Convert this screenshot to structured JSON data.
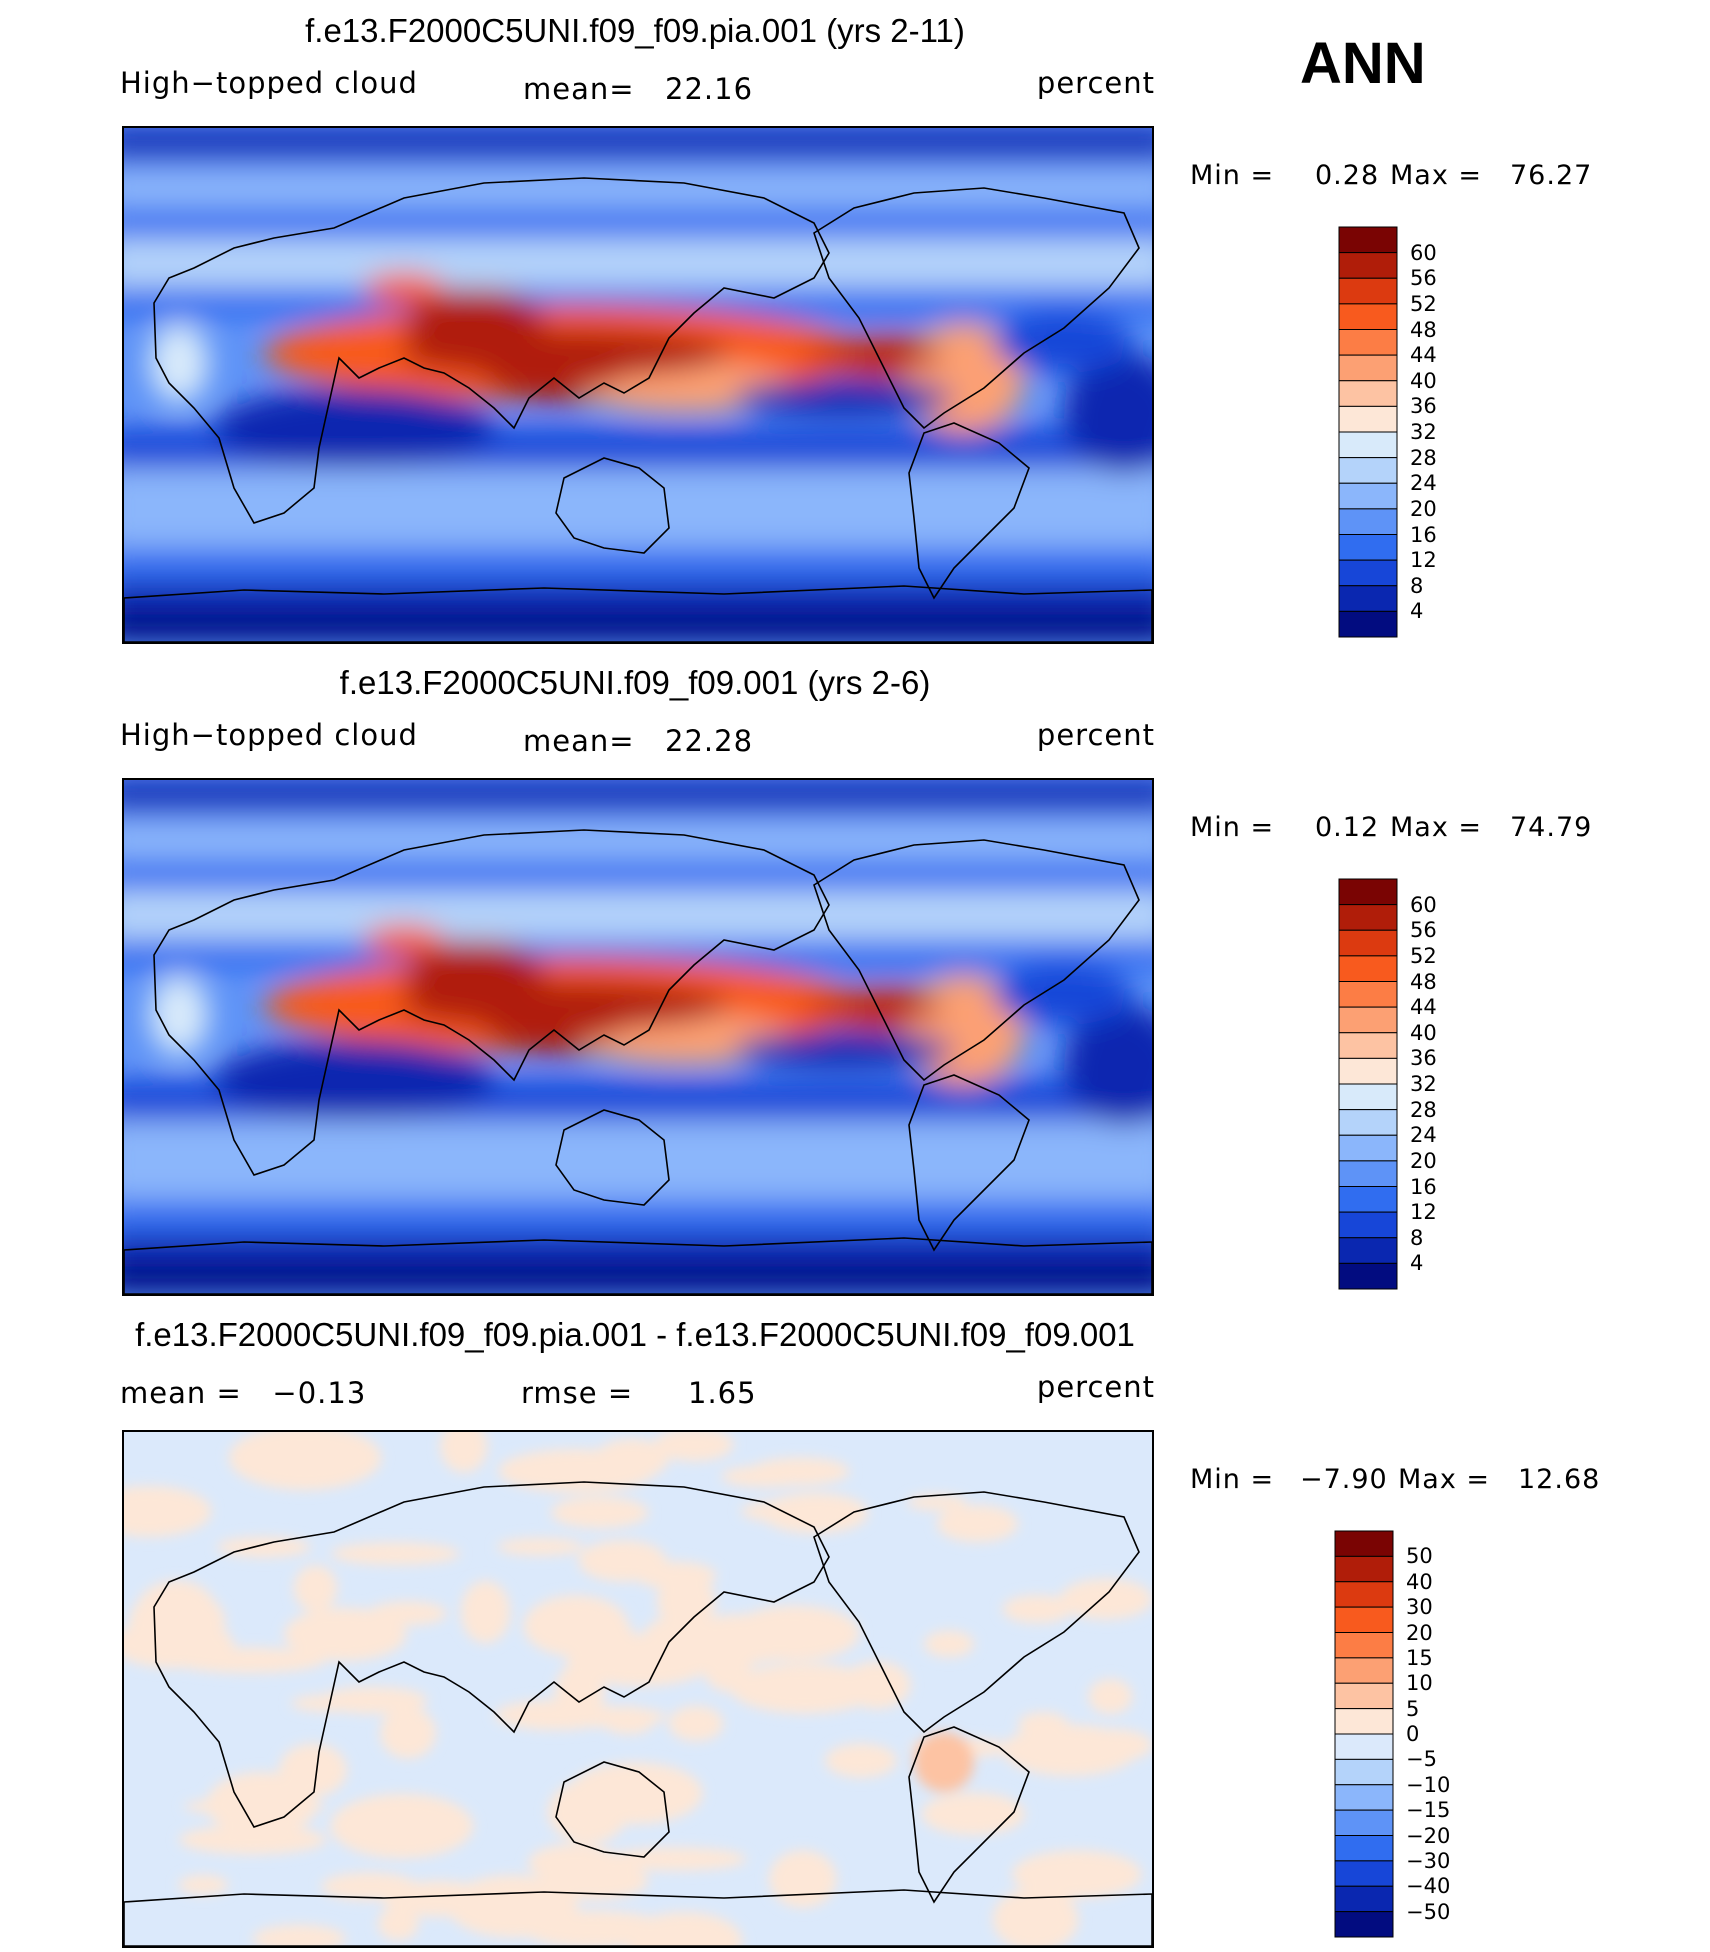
{
  "season": "ANN",
  "panels": [
    {
      "title": "f.e13.F2000C5UNI.f09_f09.pia.001 (yrs 2-11)",
      "left": "High−topped cloud",
      "mid_label": "mean=",
      "mid_value": "22.16",
      "right": "percent",
      "min_label": "Min =",
      "min_value": "0.28",
      "max_label": "Max =",
      "max_value": "76.27",
      "colorbar_labels": [
        "60",
        "56",
        "52",
        "48",
        "44",
        "40",
        "36",
        "32",
        "28",
        "24",
        "20",
        "16",
        "12",
        "8",
        "4"
      ],
      "kind": "abs"
    },
    {
      "title": "f.e13.F2000C5UNI.f09_f09.001 (yrs 2-6)",
      "left": "High−topped cloud",
      "mid_label": "mean=",
      "mid_value": "22.28",
      "right": "percent",
      "min_label": "Min =",
      "min_value": "0.12",
      "max_label": "Max =",
      "max_value": "74.79",
      "colorbar_labels": [
        "60",
        "56",
        "52",
        "48",
        "44",
        "40",
        "36",
        "32",
        "28",
        "24",
        "20",
        "16",
        "12",
        "8",
        "4"
      ],
      "kind": "abs"
    },
    {
      "title": "f.e13.F2000C5UNI.f09_f09.pia.001 - f.e13.F2000C5UNI.f09_f09.001",
      "left": "mean =   −0.13",
      "mid_label": "rmse =",
      "mid_value": "1.65",
      "right": "percent",
      "min_label": "Min =",
      "min_value": "−7.90",
      "max_label": "Max =",
      "max_value": "12.68",
      "colorbar_labels": [
        "50",
        "40",
        "30",
        "20",
        "15",
        "10",
        "5",
        "0",
        "−5",
        "−10",
        "−15",
        "−20",
        "−30",
        "−40",
        "−50"
      ],
      "kind": "diff"
    }
  ],
  "colors": {
    "abs_scale": [
      "#7a0403",
      "#b01d09",
      "#dc3a10",
      "#f85a1e",
      "#fc7d45",
      "#fca073",
      "#fdc3a3",
      "#fde7d7",
      "#d8eafa",
      "#b4d3fa",
      "#8bb6fb",
      "#5e93f7",
      "#306df0",
      "#1746d8",
      "#0a27b0",
      "#020c80"
    ],
    "diff_scale": [
      "#7a0403",
      "#b01d09",
      "#dc3a10",
      "#f85a1e",
      "#fc7d45",
      "#fca073",
      "#fdc3a3",
      "#fde7d7",
      "#dbe9fb",
      "#b4d3fa",
      "#8bb6fb",
      "#5e93f7",
      "#306df0",
      "#1746d8",
      "#0a27b0",
      "#020c80"
    ]
  }
}
